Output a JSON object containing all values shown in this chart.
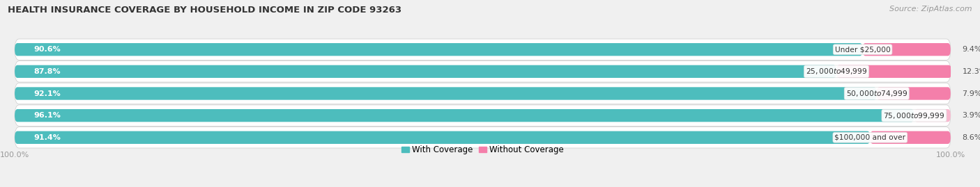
{
  "title": "HEALTH INSURANCE COVERAGE BY HOUSEHOLD INCOME IN ZIP CODE 93263",
  "source": "Source: ZipAtlas.com",
  "categories": [
    "Under $25,000",
    "$25,000 to $49,999",
    "$50,000 to $74,999",
    "$75,000 to $99,999",
    "$100,000 and over"
  ],
  "with_coverage": [
    90.6,
    87.8,
    92.1,
    96.1,
    91.4
  ],
  "without_coverage": [
    9.4,
    12.3,
    7.9,
    3.9,
    8.6
  ],
  "color_with": "#4dbdbd",
  "color_without": "#f47faa",
  "color_without_light": "#f9b8cf",
  "row_bg": "#e8e8e8",
  "title_fontsize": 9.5,
  "source_fontsize": 8,
  "label_fontsize": 8,
  "legend_fontsize": 8.5,
  "axis_label_fontsize": 8,
  "bar_height": 0.58,
  "xlim": [
    0,
    100
  ]
}
